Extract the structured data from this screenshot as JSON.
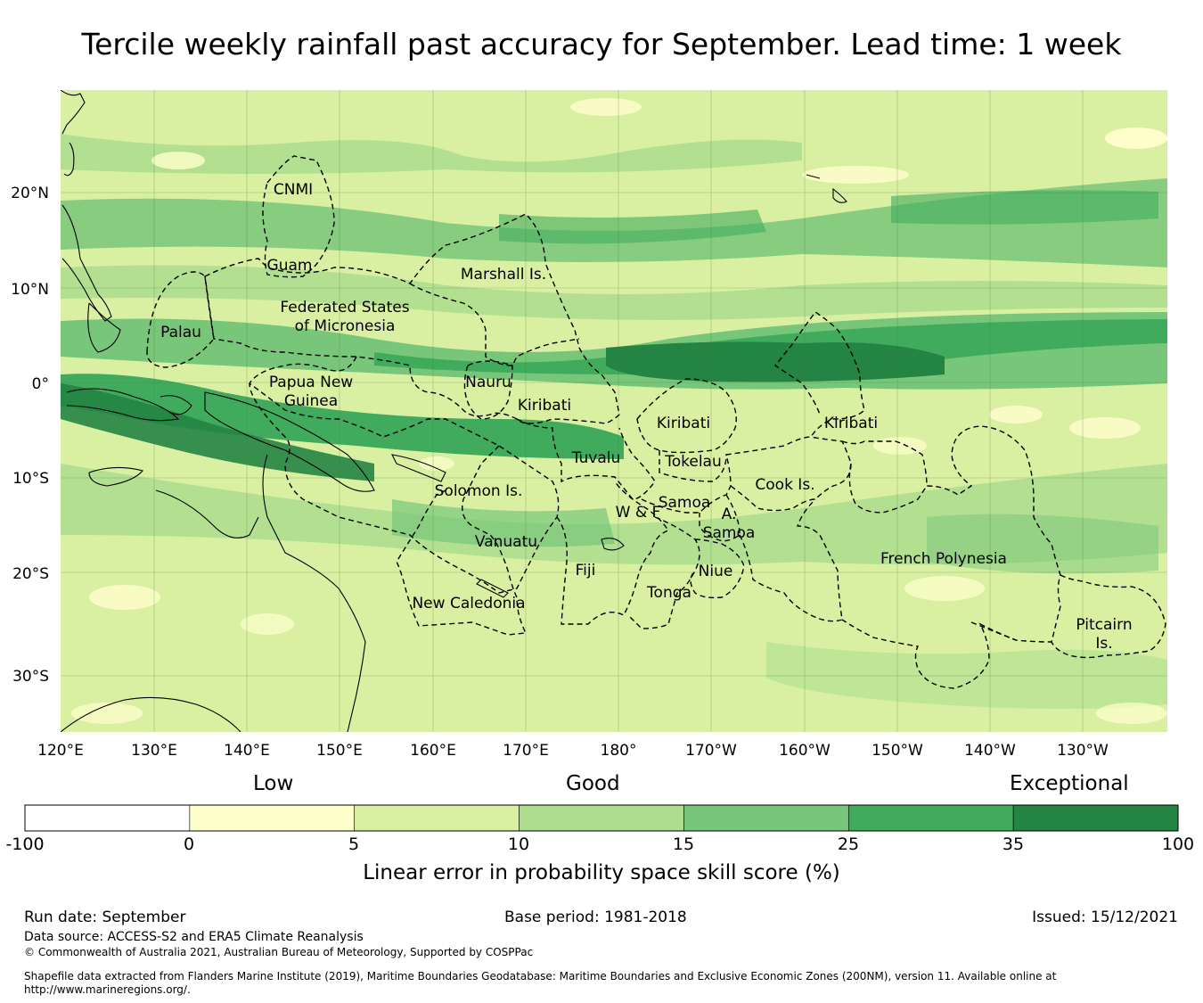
{
  "title": "Tercile weekly rainfall past accuracy for September. Lead time: 1 week",
  "map": {
    "lat_ticks": [
      "20°N",
      "10°N",
      "0°",
      "10°S",
      "20°S",
      "30°S"
    ],
    "lon_ticks": [
      "120°E",
      "130°E",
      "140°E",
      "150°E",
      "160°E",
      "170°E",
      "180°",
      "170°W",
      "160°W",
      "150°W",
      "140°W",
      "130°W"
    ],
    "regions": [
      {
        "key": "cnmi",
        "label": "CNMI"
      },
      {
        "key": "guam",
        "label": "Guam"
      },
      {
        "key": "marshall",
        "label": "Marshall Is."
      },
      {
        "key": "fsm1",
        "label": "Federated States"
      },
      {
        "key": "fsm2",
        "label": "of Micronesia"
      },
      {
        "key": "palau",
        "label": "Palau"
      },
      {
        "key": "png1",
        "label": "Papua New"
      },
      {
        "key": "png2",
        "label": "Guinea"
      },
      {
        "key": "nauru",
        "label": "Nauru"
      },
      {
        "key": "kiribati_w",
        "label": "Kiribati"
      },
      {
        "key": "kiribati_c",
        "label": "Kiribati"
      },
      {
        "key": "kiribati_e",
        "label": "Kiribati"
      },
      {
        "key": "tuvalu",
        "label": "Tuvalu"
      },
      {
        "key": "tokelau",
        "label": "Tokelau"
      },
      {
        "key": "cook",
        "label": "Cook Is."
      },
      {
        "key": "solomon",
        "label": "Solomon Is."
      },
      {
        "key": "samoa",
        "label": "Samoa"
      },
      {
        "key": "wf",
        "label": "W & F"
      },
      {
        "key": "asamoa1",
        "label": "A."
      },
      {
        "key": "asamoa2",
        "label": "Samoa"
      },
      {
        "key": "vanuatu",
        "label": "Vanuatu"
      },
      {
        "key": "fiji",
        "label": "Fiji"
      },
      {
        "key": "niue",
        "label": "Niue"
      },
      {
        "key": "tonga",
        "label": "Tonga"
      },
      {
        "key": "frenchpoly",
        "label": "French Polynesia"
      },
      {
        "key": "newcal",
        "label": "New Caledonia"
      },
      {
        "key": "pitcairn1",
        "label": "Pitcairn"
      },
      {
        "key": "pitcairn2",
        "label": "Is."
      }
    ]
  },
  "legend": {
    "categories": [
      "Low",
      "Good",
      "Exceptional"
    ],
    "bins": [
      {
        "from": "-100",
        "to": "0",
        "color": "#ffffff"
      },
      {
        "from": "0",
        "to": "5",
        "color": "#ffffcc"
      },
      {
        "from": "5",
        "to": "10",
        "color": "#d9f0a3"
      },
      {
        "from": "10",
        "to": "15",
        "color": "#addd8e"
      },
      {
        "from": "15",
        "to": "25",
        "color": "#78c679"
      },
      {
        "from": "25",
        "to": "35",
        "color": "#41ab5d"
      },
      {
        "from": "35",
        "to": "100",
        "color": "#238443"
      }
    ],
    "tick_labels": [
      "-100",
      "0",
      "5",
      "10",
      "15",
      "25",
      "35",
      "100"
    ],
    "axis_label": "Linear error in probability space skill score (%)"
  },
  "footer": {
    "run_date": "Run date: September",
    "base_period": "Base period: 1981-2018",
    "issued": "Issued: 15/12/2021",
    "data_source": "Data source: ACCESS-S2 and ERA5 Climate Reanalysis",
    "copyright": "© Commonwealth of Australia 2021, Australian Bureau of Meteorology, Supported by COSPPac",
    "shapefile_note": "Shapefile data extracted from Flanders Marine Institute (2019), Maritime Boundaries Geodatabase: Maritime Boundaries and Exclusive Economic Zones (200NM), version 11. Available online at http://www.marineregions.org/."
  }
}
